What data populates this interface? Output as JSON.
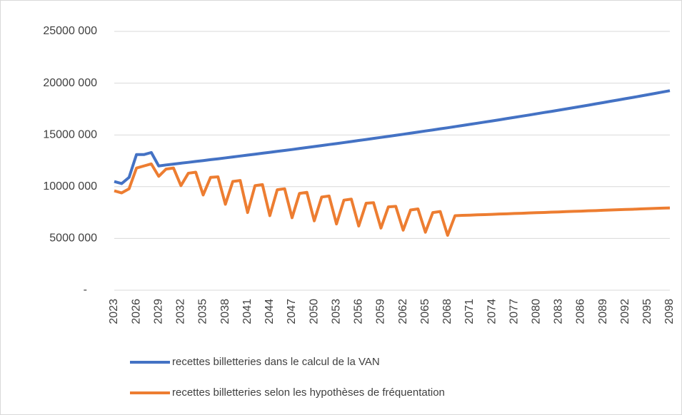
{
  "chart_data": {
    "type": "line",
    "x": [
      2023,
      2024,
      2025,
      2026,
      2027,
      2028,
      2029,
      2030,
      2031,
      2032,
      2033,
      2034,
      2035,
      2036,
      2037,
      2038,
      2039,
      2040,
      2041,
      2042,
      2043,
      2044,
      2045,
      2046,
      2047,
      2048,
      2049,
      2050,
      2051,
      2052,
      2053,
      2054,
      2055,
      2056,
      2057,
      2058,
      2059,
      2060,
      2061,
      2062,
      2063,
      2064,
      2065,
      2066,
      2067,
      2068,
      2069,
      2070,
      2071,
      2072,
      2073,
      2074,
      2075,
      2076,
      2077,
      2078,
      2079,
      2080,
      2081,
      2082,
      2083,
      2084,
      2085,
      2086,
      2087,
      2088,
      2089,
      2090,
      2091,
      2092,
      2093,
      2094,
      2095,
      2096,
      2097,
      2098
    ],
    "xlim": [
      2023,
      2098
    ],
    "xticks": [
      2023,
      2026,
      2029,
      2032,
      2035,
      2038,
      2041,
      2044,
      2047,
      2050,
      2053,
      2056,
      2059,
      2062,
      2065,
      2068,
      2071,
      2074,
      2077,
      2080,
      2083,
      2086,
      2089,
      2092,
      2095,
      2098
    ],
    "ylim": [
      0,
      25000000
    ],
    "yticks": [
      {
        "value": 0,
        "label": "-"
      },
      {
        "value": 5000000,
        "label": "5000 000"
      },
      {
        "value": 10000000,
        "label": "10000 000"
      },
      {
        "value": 15000000,
        "label": "15000 000"
      },
      {
        "value": 20000000,
        "label": "20000 000"
      },
      {
        "value": 25000000,
        "label": "25000 000"
      }
    ],
    "grid": true,
    "legend": "bottom",
    "series": [
      {
        "name": "recettes billetteries dans le calcul de la VAN",
        "color": "#4472c4",
        "values": [
          10500000,
          10300000,
          10900000,
          13100000,
          13100000,
          13300000,
          12000000,
          12100000,
          12180000,
          12270000,
          12350000,
          12440000,
          12520000,
          12610000,
          12690000,
          12780000,
          12870000,
          12960000,
          13050000,
          13140000,
          13230000,
          13320000,
          13410000,
          13500000,
          13590000,
          13690000,
          13780000,
          13880000,
          13970000,
          14070000,
          14160000,
          14260000,
          14360000,
          14460000,
          14560000,
          14660000,
          14760000,
          14860000,
          14960000,
          15060000,
          15170000,
          15270000,
          15380000,
          15480000,
          15590000,
          15690000,
          15800000,
          15910000,
          16020000,
          16130000,
          16240000,
          16350000,
          16460000,
          16580000,
          16690000,
          16810000,
          16920000,
          17040000,
          17160000,
          17270000,
          17390000,
          17510000,
          17630000,
          17750000,
          17870000,
          18000000,
          18120000,
          18250000,
          18370000,
          18500000,
          18620000,
          18750000,
          18880000,
          19010000,
          19140000,
          19270000
        ]
      },
      {
        "name": "recettes billetteries selon les hypothèses de fréquentation",
        "color": "#ed7d31",
        "values": [
          9600000,
          9400000,
          9800000,
          11800000,
          12000000,
          12200000,
          11000000,
          11700000,
          11800000,
          10100000,
          11300000,
          11400000,
          9200000,
          10900000,
          10950000,
          8300000,
          10500000,
          10600000,
          7500000,
          10100000,
          10200000,
          7200000,
          9700000,
          9800000,
          7000000,
          9350000,
          9450000,
          6700000,
          9000000,
          9100000,
          6400000,
          8700000,
          8800000,
          6200000,
          8400000,
          8450000,
          6000000,
          8050000,
          8100000,
          5800000,
          7750000,
          7850000,
          5600000,
          7500000,
          7600000,
          5300000,
          7200000,
          7230000,
          7250000,
          7280000,
          7300000,
          7330000,
          7360000,
          7380000,
          7410000,
          7430000,
          7460000,
          7490000,
          7510000,
          7540000,
          7560000,
          7590000,
          7620000,
          7640000,
          7670000,
          7690000,
          7720000,
          7750000,
          7770000,
          7800000,
          7820000,
          7850000,
          7880000,
          7900000,
          7930000,
          7950000
        ]
      }
    ]
  }
}
